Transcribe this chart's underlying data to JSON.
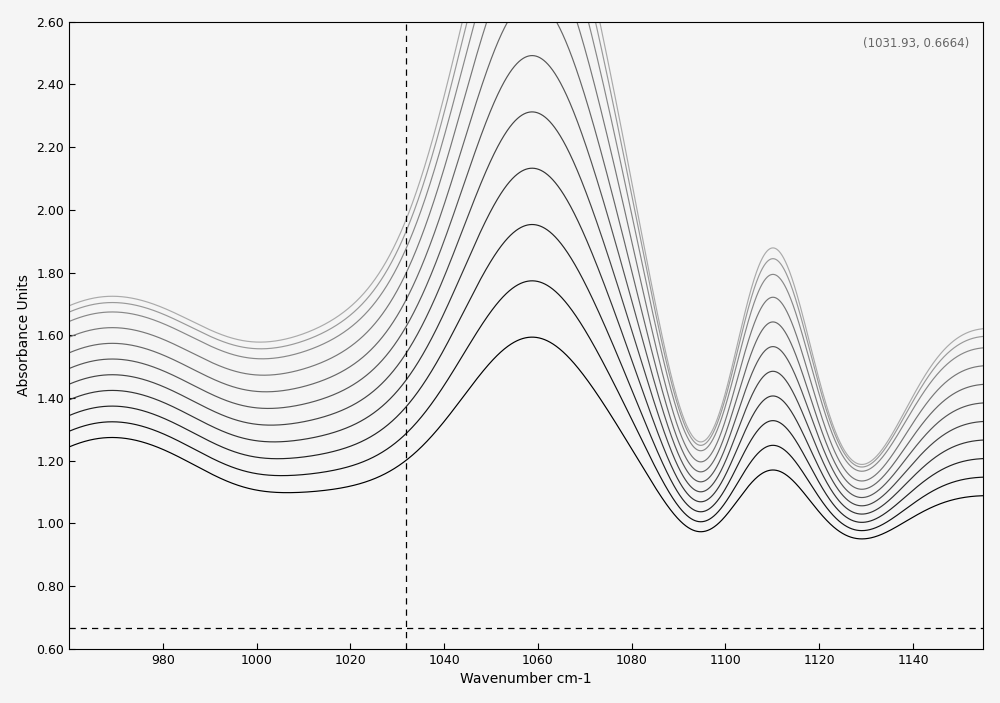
{
  "xmin": 960,
  "xmax": 1155,
  "ymin": 0.6,
  "ymax": 2.6,
  "xlabel": "Wavenumber cm-1",
  "ylabel": "Absorbance Units",
  "yticks": [
    0.6,
    0.8,
    1.0,
    1.2,
    1.4,
    1.6,
    1.8,
    2.0,
    2.2,
    2.4,
    2.6
  ],
  "xticks": [
    980,
    1000,
    1020,
    1040,
    1060,
    1080,
    1100,
    1120,
    1140
  ],
  "vline_x": 1031.93,
  "hline_y": 0.6664,
  "annotation": "(1031.93, 0.6664)",
  "n_curves": 11,
  "background_color": "#f5f5f5",
  "curve_baselines": [
    1.05,
    1.1,
    1.15,
    1.2,
    1.25,
    1.3,
    1.35,
    1.4,
    1.45,
    1.48,
    1.5
  ],
  "curve_peak_scales": [
    0.42,
    0.52,
    0.62,
    0.72,
    0.82,
    0.92,
    1.02,
    1.12,
    1.2,
    1.27,
    1.32
  ]
}
